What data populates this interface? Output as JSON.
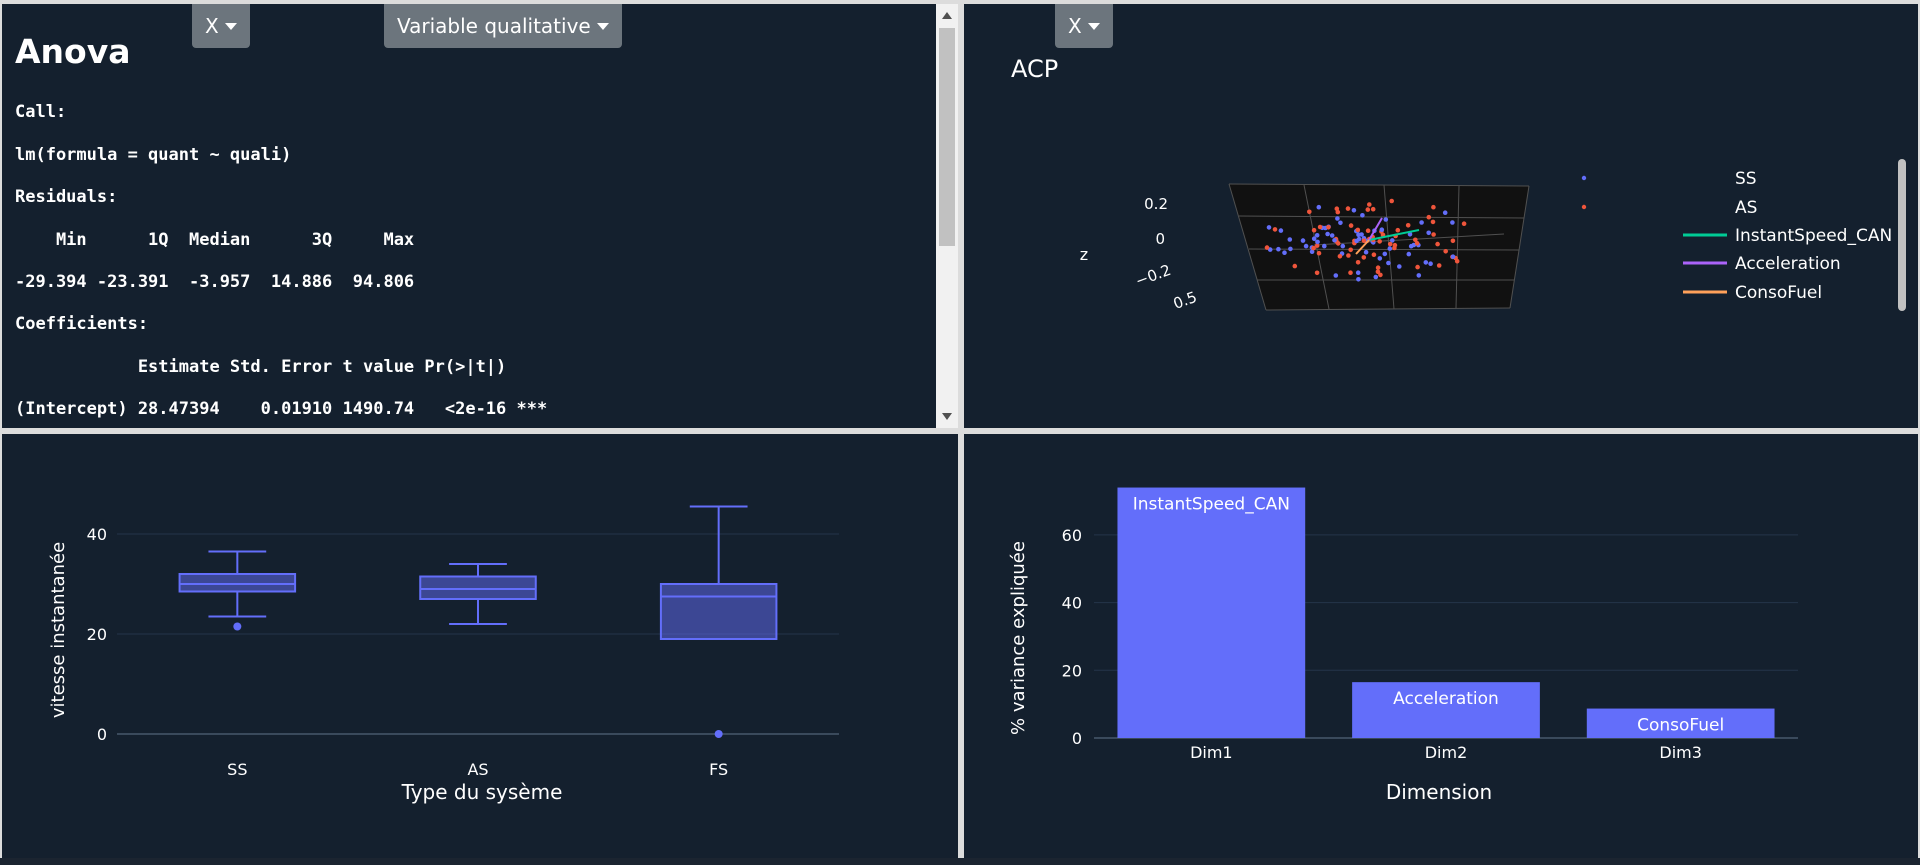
{
  "anova_panel": {
    "dropdown_x": "X",
    "dropdown_quali": "Variable qualitative",
    "title": "Anova",
    "lines": [
      "Call:",
      "lm(formula = quant ~ quali)",
      "Residuals:",
      "    Min      1Q  Median      3Q     Max",
      "-29.394 -23.391  -3.957  14.886  94.806",
      "Coefficients:",
      "            Estimate Std. Error t value Pr(>|t|)",
      "(Intercept) 28.47394    0.01910 1490.74   <2e-16 ***"
    ]
  },
  "acp_panel": {
    "dropdown_x": "X",
    "title": "ACP",
    "z_label": "z",
    "z_ticks": [
      "0.2",
      "0",
      "−0.2",
      "0.5"
    ],
    "legend": [
      {
        "label": "SS",
        "type": "marker",
        "color": "#636efa"
      },
      {
        "label": "AS",
        "type": "marker",
        "color": "#ef553b"
      },
      {
        "label": "InstantSpeed_CAN",
        "type": "line",
        "color": "#00cc96"
      },
      {
        "label": "Acceleration",
        "type": "line",
        "color": "#ab63fa"
      },
      {
        "label": "ConsoFuel",
        "type": "line",
        "color": "#ffa15a"
      }
    ]
  },
  "box_panel": {
    "chart_data": {
      "type": "box",
      "xlabel": "Type du sysème",
      "ylabel": "vitesse instantanée",
      "categories": [
        "SS",
        "AS",
        "FS"
      ],
      "y_ticks": [
        0,
        20,
        40
      ],
      "ylim": [
        -2,
        52
      ],
      "boxes": [
        {
          "name": "SS",
          "min": 23.5,
          "q1": 28.5,
          "median": 30,
          "q3": 32,
          "max": 36.5,
          "outliers": [
            21.5
          ]
        },
        {
          "name": "AS",
          "min": 22,
          "q1": 27,
          "median": 29,
          "q3": 31.5,
          "max": 34,
          "outliers": []
        },
        {
          "name": "FS",
          "min": 19,
          "q1": 19,
          "median": 27.5,
          "q3": 30,
          "max": 45.5,
          "outliers": [
            0
          ]
        }
      ],
      "color": "#636efa"
    }
  },
  "bar_panel": {
    "chart_data": {
      "type": "bar",
      "xlabel": "Dimension",
      "ylabel": "% variance expliquée",
      "categories": [
        "Dim1",
        "Dim2",
        "Dim3"
      ],
      "values": [
        74,
        16.5,
        8.7
      ],
      "bar_labels": [
        "InstantSpeed_CAN",
        "Acceleration",
        "ConsoFuel"
      ],
      "y_ticks": [
        0,
        20,
        40,
        60
      ],
      "ylim": [
        0,
        78
      ],
      "color": "#636efa"
    }
  }
}
